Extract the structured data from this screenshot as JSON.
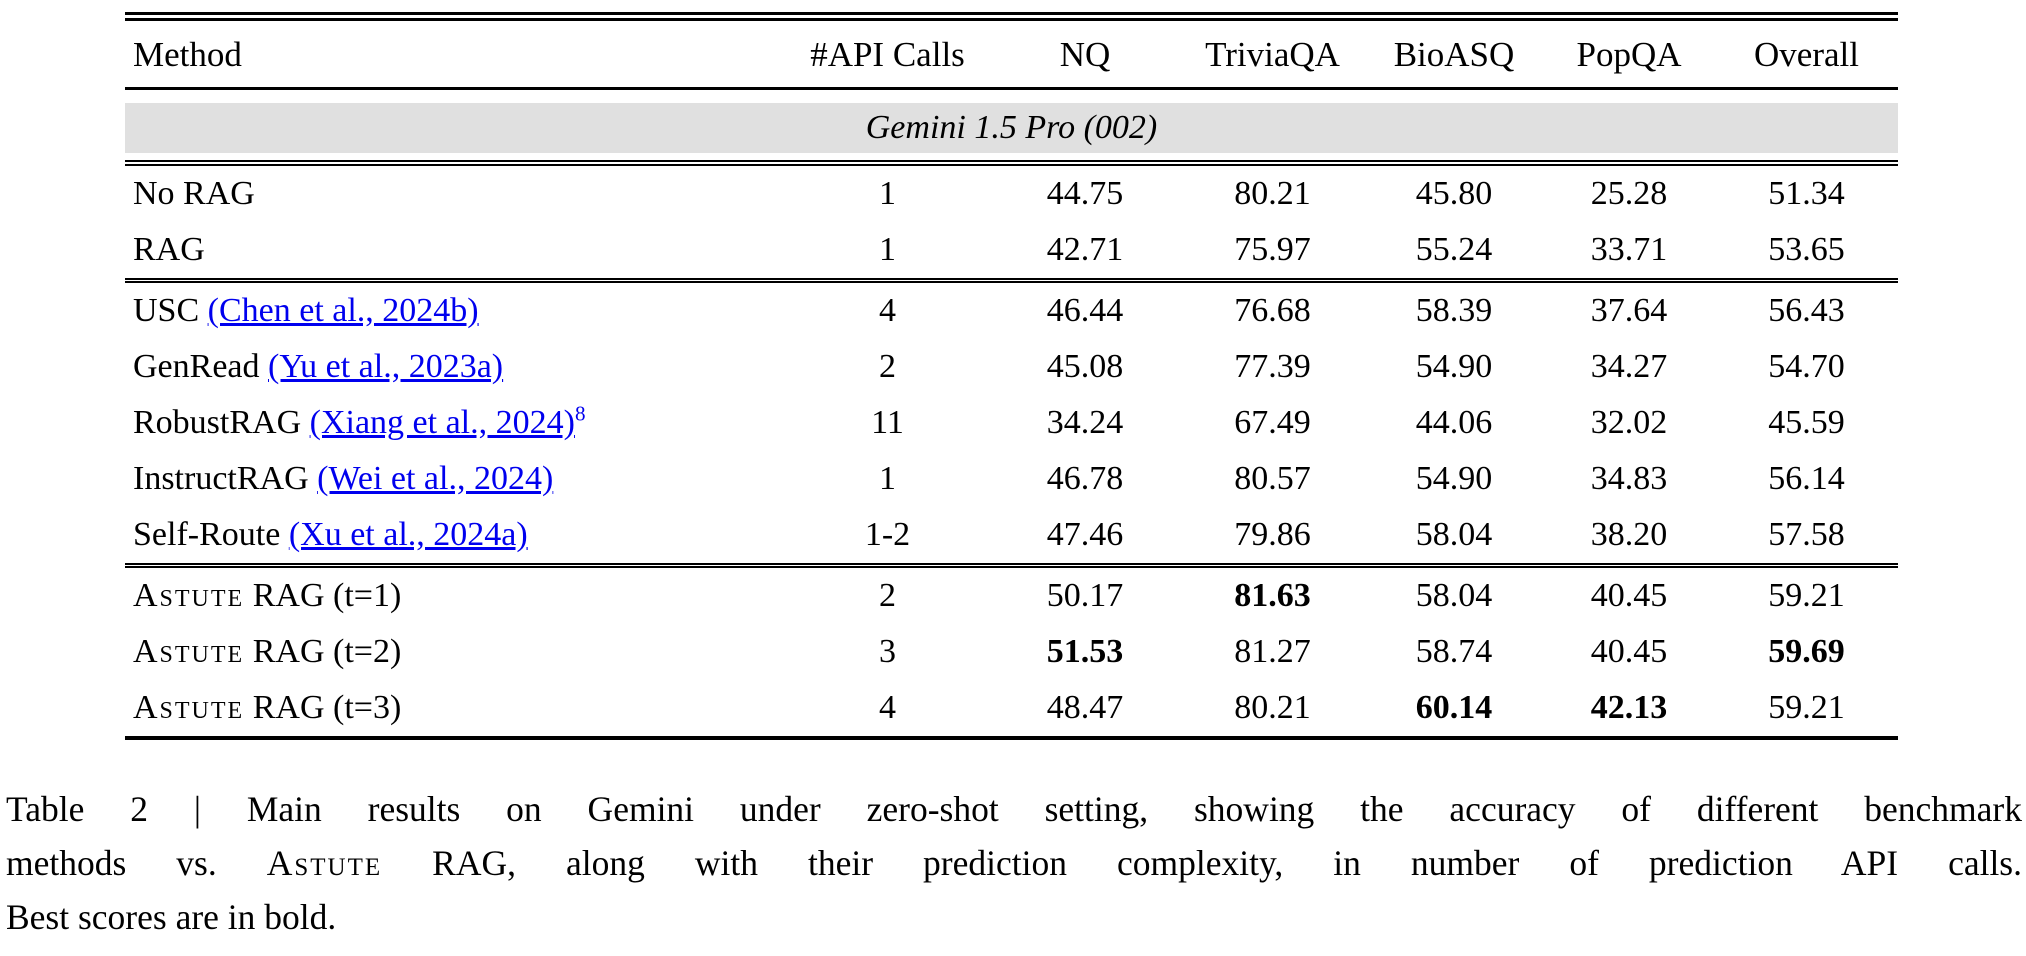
{
  "table": {
    "columns": [
      "Method",
      "#API Calls",
      "NQ",
      "TriviaQA",
      "BioASQ",
      "PopQA",
      "Overall"
    ],
    "band": "Gemini 1.5 Pro (002)",
    "link_color": "#0000ee",
    "band_bg": "#e0e0e0",
    "sections": [
      {
        "rows": [
          {
            "name": "No RAG",
            "values": [
              "1",
              "44.75",
              "80.21",
              "45.80",
              "25.28",
              "51.34"
            ]
          },
          {
            "name": "RAG",
            "values": [
              "1",
              "42.71",
              "75.97",
              "55.24",
              "33.71",
              "53.65"
            ]
          }
        ]
      },
      {
        "rows": [
          {
            "name": "USC",
            "cite": "(Chen et al., 2024b)",
            "values": [
              "4",
              "46.44",
              "76.68",
              "58.39",
              "37.64",
              "56.43"
            ]
          },
          {
            "name": "GenRead",
            "cite": "(Yu et al., 2023a)",
            "values": [
              "2",
              "45.08",
              "77.39",
              "54.90",
              "34.27",
              "54.70"
            ]
          },
          {
            "name": "RobustRAG",
            "cite": "(Xiang et al., 2024)",
            "sup": "8",
            "values": [
              "11",
              "34.24",
              "67.49",
              "44.06",
              "32.02",
              "45.59"
            ]
          },
          {
            "name": "InstructRAG",
            "cite": "(Wei et al., 2024)",
            "values": [
              "1",
              "46.78",
              "80.57",
              "54.90",
              "34.83",
              "56.14"
            ]
          },
          {
            "name": "Self-Route",
            "cite": "(Xu et al., 2024a)",
            "values": [
              "1-2",
              "47.46",
              "79.86",
              "58.04",
              "38.20",
              "57.58"
            ]
          }
        ]
      },
      {
        "rows": [
          {
            "name_sc": "Astute",
            "name": " RAG (t=1)",
            "values": [
              "2",
              "50.17",
              "81.63",
              "58.04",
              "40.45",
              "59.21"
            ],
            "bold": [
              false,
              false,
              true,
              false,
              false,
              false
            ]
          },
          {
            "name_sc": "Astute",
            "name": " RAG (t=2)",
            "values": [
              "3",
              "51.53",
              "81.27",
              "58.74",
              "40.45",
              "59.69"
            ],
            "bold": [
              false,
              true,
              false,
              false,
              false,
              true
            ]
          },
          {
            "name_sc": "Astute",
            "name": " RAG (t=3)",
            "values": [
              "4",
              "48.47",
              "80.21",
              "60.14",
              "42.13",
              "59.21"
            ],
            "bold": [
              false,
              false,
              false,
              true,
              true,
              false
            ]
          }
        ]
      }
    ]
  },
  "caption": {
    "line1": "Table 2 | Main results on Gemini under zero-shot setting, showing the accuracy of different benchmark",
    "line2_pre": "methods vs. ",
    "line2_sc": "Astute",
    "line2_post": " RAG, along with their prediction complexity, in number of prediction API calls.",
    "line3": "Best scores are in bold."
  }
}
